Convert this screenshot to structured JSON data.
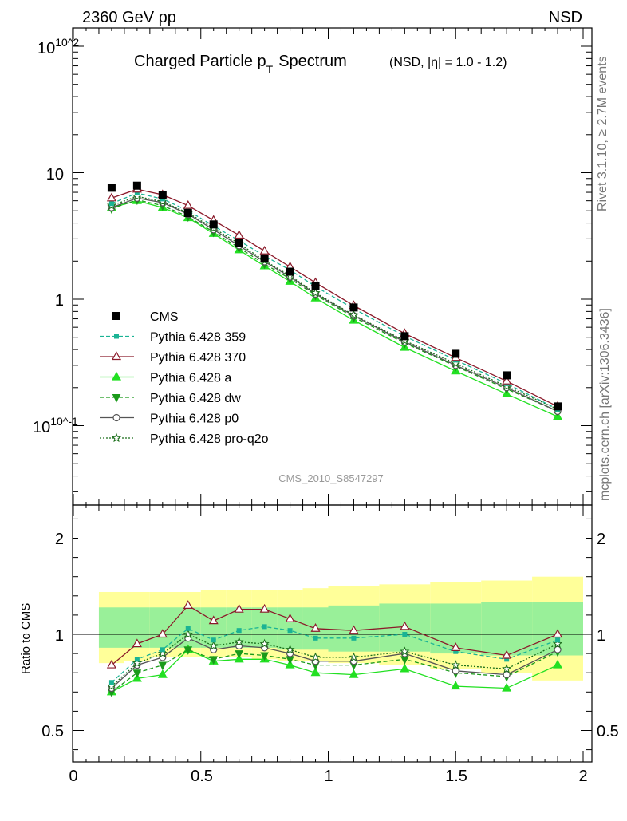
{
  "header": {
    "left": "2360 GeV pp",
    "right": "NSD"
  },
  "plot_title": {
    "main_prefix": "Charged Particle p",
    "main_sub": "T",
    "main_suffix": "Spectrum",
    "qualifier": "(NSD, |η| = 1.0 - 1.2)"
  },
  "side_text": {
    "rivet": "Rivet 3.1.10, ≥ 2.7M events",
    "mcplots": "mcplots.cern.ch [arXiv:1306.3436]"
  },
  "analysis_label": "CMS_2010_S8547297",
  "colors": {
    "cms": "#000000",
    "p359": "#1ab394",
    "p370": "#8b1a2a",
    "pa": "#22e022",
    "pdw": "#1a9a1a",
    "pp0": "#555555",
    "pq2o": "#1a6e1a",
    "band_inner": "#99f099",
    "band_outer": "#ffff99"
  },
  "chart_data": [
    {
      "type": "scatter",
      "panel": "main",
      "title": "Charged Particle pT Spectrum",
      "xlim": [
        0,
        2
      ],
      "ylim": [
        0.025,
        130
      ],
      "yscale": "log",
      "ytick_labels": [
        "10^-1",
        "1",
        "10",
        "10^2"
      ],
      "legend_position": "left",
      "x": [
        0.15,
        0.25,
        0.35,
        0.45,
        0.55,
        0.65,
        0.75,
        0.85,
        0.95,
        1.1,
        1.3,
        1.5,
        1.7,
        1.9
      ],
      "series": [
        {
          "name": "CMS",
          "key": "cms",
          "values": [
            7.6,
            7.9,
            6.7,
            4.8,
            3.9,
            2.8,
            2.1,
            1.65,
            1.28,
            0.86,
            0.51,
            0.37,
            0.25,
            0.142
          ]
        },
        {
          "name": "Pythia 6.428 359",
          "key": "p359",
          "values": [
            5.7,
            6.9,
            6.2,
            5.0,
            3.8,
            2.9,
            2.2,
            1.7,
            1.26,
            0.84,
            0.51,
            0.33,
            0.215,
            0.135
          ]
        },
        {
          "name": "Pythia 6.428 370",
          "key": "p370",
          "values": [
            6.3,
            7.4,
            6.7,
            5.5,
            4.2,
            3.2,
            2.4,
            1.8,
            1.35,
            0.89,
            0.535,
            0.345,
            0.225,
            0.142
          ]
        },
        {
          "name": "Pythia 6.428 a",
          "key": "pa",
          "values": [
            5.3,
            6.0,
            5.3,
            4.4,
            3.3,
            2.45,
            1.83,
            1.38,
            1.02,
            0.68,
            0.415,
            0.27,
            0.178,
            0.118
          ]
        },
        {
          "name": "Pythia 6.428 dw",
          "key": "pdw",
          "values": [
            5.2,
            6.1,
            5.5,
            4.5,
            3.4,
            2.55,
            1.9,
            1.45,
            1.08,
            0.72,
            0.45,
            0.295,
            0.195,
            0.13
          ]
        },
        {
          "name": "Pythia 6.428 p0",
          "key": "pp0",
          "values": [
            5.3,
            6.3,
            5.8,
            4.7,
            3.55,
            2.65,
            1.98,
            1.5,
            1.1,
            0.74,
            0.46,
            0.3,
            0.2,
            0.13
          ]
        },
        {
          "name": "Pythia 6.428 pro-q2o",
          "key": "pq2o",
          "values": [
            5.5,
            6.5,
            5.9,
            4.8,
            3.65,
            2.75,
            2.02,
            1.53,
            1.12,
            0.75,
            0.47,
            0.31,
            0.205,
            0.135
          ]
        }
      ]
    },
    {
      "type": "line",
      "panel": "ratio",
      "ylabel": "Ratio to CMS",
      "xlim": [
        0,
        2
      ],
      "ylim": [
        0.34,
        2.3
      ],
      "xtick_labels": [
        "0",
        "0.5",
        "1",
        "1.5",
        "2"
      ],
      "ytick_labels": [
        "0.5",
        "1",
        "2"
      ],
      "bins": [
        [
          0.1,
          0.2
        ],
        [
          0.2,
          0.3
        ],
        [
          0.3,
          0.4
        ],
        [
          0.4,
          0.5
        ],
        [
          0.5,
          0.6
        ],
        [
          0.6,
          0.7
        ],
        [
          0.7,
          0.8
        ],
        [
          0.8,
          0.9
        ],
        [
          0.9,
          1.0
        ],
        [
          1.0,
          1.2
        ],
        [
          1.2,
          1.4
        ],
        [
          1.4,
          1.6
        ],
        [
          1.6,
          1.8
        ],
        [
          1.8,
          2.0
        ]
      ],
      "band_inner": [
        [
          0.93,
          1.14
        ],
        [
          0.93,
          1.14
        ],
        [
          0.93,
          1.14
        ],
        [
          0.93,
          1.14
        ],
        [
          0.93,
          1.14
        ],
        [
          0.93,
          1.14
        ],
        [
          0.93,
          1.14
        ],
        [
          0.92,
          1.14
        ],
        [
          0.92,
          1.14
        ],
        [
          0.91,
          1.15
        ],
        [
          0.91,
          1.16
        ],
        [
          0.9,
          1.16
        ],
        [
          0.89,
          1.17
        ],
        [
          0.89,
          1.17
        ]
      ],
      "band_outer": [
        [
          0.85,
          1.22
        ],
        [
          0.86,
          1.22
        ],
        [
          0.88,
          1.22
        ],
        [
          0.88,
          1.22
        ],
        [
          0.88,
          1.23
        ],
        [
          0.88,
          1.23
        ],
        [
          0.87,
          1.23
        ],
        [
          0.86,
          1.23
        ],
        [
          0.86,
          1.24
        ],
        [
          0.85,
          1.25
        ],
        [
          0.84,
          1.26
        ],
        [
          0.82,
          1.27
        ],
        [
          0.8,
          1.28
        ],
        [
          0.76,
          1.3
        ]
      ],
      "x": [
        0.15,
        0.25,
        0.35,
        0.45,
        0.55,
        0.65,
        0.75,
        0.85,
        0.95,
        1.1,
        1.3,
        1.5,
        1.7,
        1.9
      ],
      "series": [
        {
          "name": "Pythia 6.428 359",
          "key": "p359",
          "values": [
            0.75,
            0.87,
            0.92,
            1.03,
            0.97,
            1.02,
            1.04,
            1.02,
            0.98,
            0.98,
            1.0,
            0.91,
            0.87,
            0.97
          ]
        },
        {
          "name": "Pythia 6.428 370",
          "key": "p370",
          "values": [
            0.84,
            0.95,
            1.0,
            1.15,
            1.07,
            1.13,
            1.13,
            1.08,
            1.03,
            1.02,
            1.04,
            0.93,
            0.89,
            1.0
          ]
        },
        {
          "name": "Pythia 6.428 a",
          "key": "pa",
          "values": [
            0.7,
            0.77,
            0.79,
            0.92,
            0.86,
            0.87,
            0.87,
            0.84,
            0.8,
            0.79,
            0.82,
            0.73,
            0.72,
            0.84
          ]
        },
        {
          "name": "Pythia 6.428 dw",
          "key": "pdw",
          "values": [
            0.7,
            0.8,
            0.84,
            0.92,
            0.87,
            0.9,
            0.89,
            0.87,
            0.84,
            0.84,
            0.87,
            0.8,
            0.78,
            0.91
          ]
        },
        {
          "name": "Pythia 6.428 p0",
          "key": "pp0",
          "values": [
            0.72,
            0.84,
            0.88,
            0.98,
            0.92,
            0.94,
            0.93,
            0.9,
            0.86,
            0.86,
            0.9,
            0.81,
            0.79,
            0.92
          ]
        },
        {
          "name": "Pythia 6.428 pro-q2o",
          "key": "pq2o",
          "values": [
            0.73,
            0.85,
            0.9,
            1.0,
            0.94,
            0.96,
            0.95,
            0.92,
            0.88,
            0.88,
            0.91,
            0.84,
            0.82,
            0.95
          ]
        }
      ]
    }
  ]
}
